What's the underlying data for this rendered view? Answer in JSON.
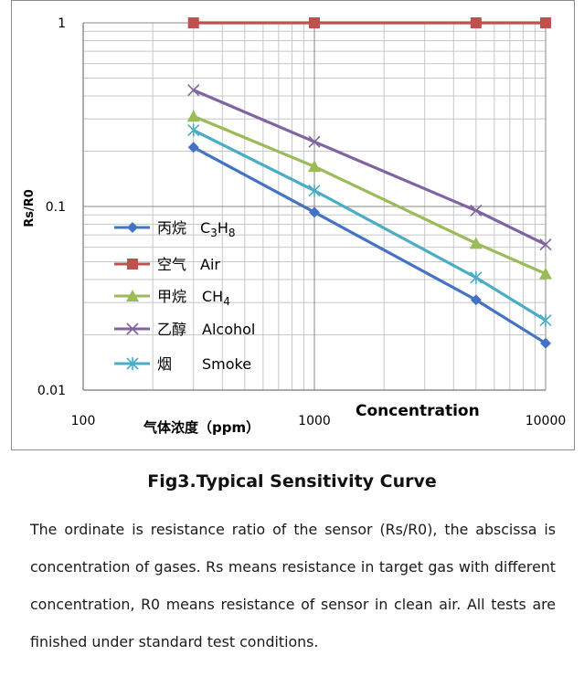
{
  "chart_data": {
    "type": "line",
    "x_scale": "log",
    "y_scale": "log",
    "xlim": [
      100,
      10000
    ],
    "ylim": [
      0.01,
      1
    ],
    "x_ticks": [
      "100",
      "1000",
      "10000"
    ],
    "y_ticks": [
      "1",
      "0.1",
      "0.01"
    ],
    "ylabel": "Rs/R0",
    "xlabel": "Concentration",
    "xlabel_cn": "气体浓度（ppm）",
    "legend_position": "left-middle",
    "x": [
      300,
      1000,
      5000,
      10000
    ],
    "series": [
      {
        "name": "丙烷 C3H8",
        "color": "#4472C4",
        "marker": "diamond",
        "values": [
          0.21,
          0.093,
          0.031,
          0.018
        ]
      },
      {
        "name": "空气 Air",
        "color": "#C0504D",
        "marker": "square",
        "values": [
          1,
          1,
          1,
          1
        ]
      },
      {
        "name": "甲烷 CH4",
        "color": "#9BBB59",
        "marker": "triangle",
        "values": [
          0.31,
          0.165,
          0.063,
          0.043
        ]
      },
      {
        "name": "乙醇 Alcohol",
        "color": "#8064A2",
        "marker": "x",
        "values": [
          0.43,
          0.225,
          0.095,
          0.062
        ]
      },
      {
        "name": "烟 Smoke",
        "color": "#4BACC6",
        "marker": "star",
        "values": [
          0.26,
          0.122,
          0.041,
          0.024
        ]
      }
    ],
    "legend": [
      {
        "cn": "丙烷",
        "en": "C",
        "sub1": "3",
        "mid": "H",
        "sub2": "8",
        "tail": ""
      },
      {
        "cn": "空气",
        "en": "Air",
        "sub1": "",
        "mid": "",
        "sub2": "",
        "tail": ""
      },
      {
        "cn": "甲烷",
        "en": "CH",
        "sub1": "4",
        "mid": "",
        "sub2": "",
        "tail": ""
      },
      {
        "cn": "乙醇",
        "en": "Alcohol",
        "sub1": "",
        "mid": "",
        "sub2": "",
        "tail": ""
      },
      {
        "cn": "烟",
        "en": "Smoke",
        "sub1": "",
        "mid": "",
        "sub2": "",
        "tail": ""
      }
    ]
  },
  "caption": "Fig3.Typical Sensitivity Curve",
  "description": "The ordinate is resistance ratio of the sensor (Rs/R0), the abscissa is concentration of gases. Rs means resistance in target gas with different concentration, R0 means resistance of sensor in clean air. All tests are finished under standard test conditions."
}
